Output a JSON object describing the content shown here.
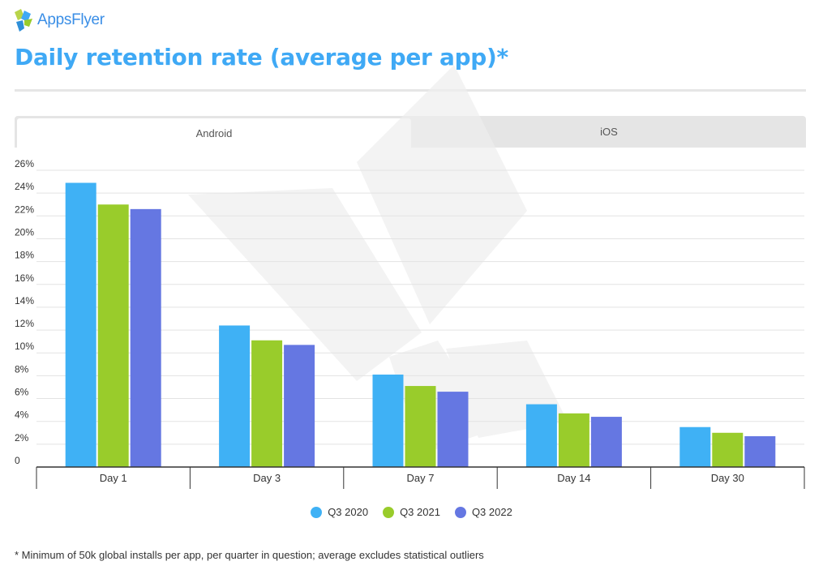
{
  "brand": {
    "logo_text": "AppsFlyer"
  },
  "title": "Daily retention rate (average per app)*",
  "tabs": [
    {
      "label": "Android",
      "active": true
    },
    {
      "label": "iOS",
      "active": false
    }
  ],
  "chart_data": {
    "type": "bar",
    "title": "",
    "xlabel": "",
    "ylabel": "",
    "categories": [
      "Day 1",
      "Day 3",
      "Day 7",
      "Day 14",
      "Day 30"
    ],
    "series": [
      {
        "name": "Q3 2020",
        "color": "#3fb1f5",
        "values": [
          24.9,
          12.4,
          8.1,
          5.5,
          3.5
        ]
      },
      {
        "name": "Q3 2021",
        "color": "#99cc2b",
        "values": [
          23.0,
          11.1,
          7.1,
          4.7,
          3.0
        ]
      },
      {
        "name": "Q3 2022",
        "color": "#6577e2",
        "values": [
          22.6,
          10.7,
          6.6,
          4.4,
          2.7
        ]
      }
    ],
    "ylim": [
      0,
      26
    ],
    "yticks": [
      0,
      2,
      4,
      6,
      8,
      10,
      12,
      14,
      16,
      18,
      20,
      22,
      24,
      26
    ],
    "ytick_labels": [
      "0",
      "2%",
      "4%",
      "6%",
      "8%",
      "10%",
      "12%",
      "14%",
      "16%",
      "18%",
      "20%",
      "22%",
      "24%",
      "26%"
    ],
    "grid": true,
    "legend_position": "bottom"
  },
  "footnote": "* Minimum of 50k global installs per app, per quarter in question; average excludes statistical outliers"
}
